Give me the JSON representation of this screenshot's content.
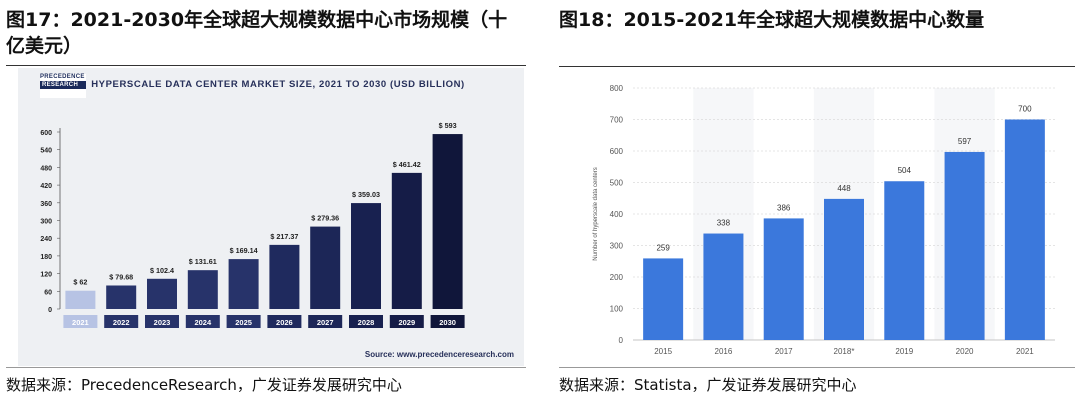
{
  "left": {
    "figure_title": "图17：2021-2030年全球超大规模数据中心市场规模（十亿美元）",
    "logo_line1": "PRECEDENCE",
    "logo_line2": "RESEARCH",
    "source_caption": "Source: www.precedenceresearch.com",
    "source": "数据来源：PrecedenceResearch，广发证券发展研究中心"
  },
  "right": {
    "figure_title": "图18：2015-2021年全球超大规模数据中心数量",
    "source": "数据来源：Statista，广发证券发展研究中心"
  },
  "colors": {
    "left_bars": [
      "#b7c3e4",
      "#27336a",
      "#27336a",
      "#27336a",
      "#27336a",
      "#1f2a5e",
      "#1c2657",
      "#182150",
      "#151c47",
      "#10163a"
    ],
    "right_bar": "#3b78dc",
    "left_bg": "#eef0f3"
  },
  "chart_data": [
    {
      "type": "bar",
      "title": "HYPERSCALE DATA CENTER MARKET SIZE, 2021 TO 2030 (USD BILLION)",
      "categories": [
        "2021",
        "2022",
        "2023",
        "2024",
        "2025",
        "2026",
        "2027",
        "2028",
        "2029",
        "2030"
      ],
      "values": [
        62,
        79.68,
        102.4,
        131.61,
        169.14,
        217.37,
        279.36,
        359.03,
        461.42,
        593
      ],
      "value_labels": [
        "$ 62",
        "$ 79.68",
        "$ 102.4",
        "$ 131.61",
        "$ 169.14",
        "$ 217.37",
        "$ 279.36",
        "$ 359.03",
        "$ 461.42",
        "$ 593"
      ],
      "yticks": [
        0,
        60,
        120,
        180,
        240,
        300,
        360,
        420,
        480,
        540,
        600
      ],
      "ylim": [
        0,
        600
      ],
      "grid": false
    },
    {
      "type": "bar",
      "categories": [
        "2015",
        "2016",
        "2017",
        "2018*",
        "2019",
        "2020",
        "2021"
      ],
      "values": [
        259,
        338,
        386,
        448,
        504,
        597,
        700
      ],
      "value_labels": [
        "259",
        "338",
        "386",
        "448",
        "504",
        "597",
        "700"
      ],
      "ylabel": "Number of hyperscale data centers",
      "yticks": [
        0,
        100,
        200,
        300,
        400,
        500,
        600,
        700,
        800
      ],
      "ylim": [
        0,
        800
      ],
      "grid": true
    }
  ]
}
